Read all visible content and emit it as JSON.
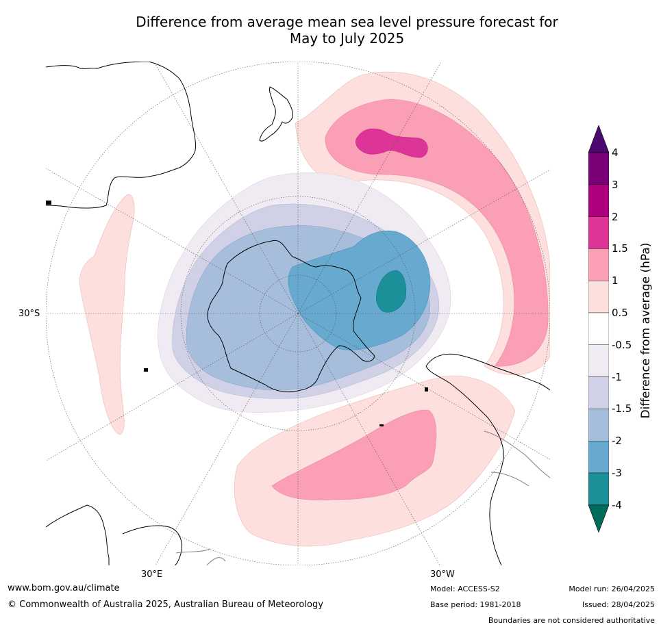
{
  "title": {
    "line1": "Difference from average mean sea level pressure forecast for",
    "line2": "May to July 2025"
  },
  "map": {
    "projection": "south-polar-stereographic",
    "lat_label": "30°S",
    "lon_labels": {
      "left": "30°E",
      "right": "30°W"
    },
    "colors": {
      "land_outline": "#000000",
      "boundaries": "#808080",
      "grid": "#555555"
    }
  },
  "colorbar": {
    "title": "Difference from average (hPa)",
    "ticks": [
      "4",
      "3",
      "2",
      "1.5",
      "1",
      "0.5",
      "-0.5",
      "-1",
      "-1.5",
      "-2",
      "-3",
      "-4"
    ],
    "levels": [
      {
        "range": "> 4",
        "color": "#4b0a6e"
      },
      {
        "range": "3 to 4",
        "color": "#7a0177"
      },
      {
        "range": "2 to 3",
        "color": "#ae017e"
      },
      {
        "range": "1.5 to 2",
        "color": "#dd3497"
      },
      {
        "range": "1 to 1.5",
        "color": "#fa9fb5"
      },
      {
        "range": "0.5 to 1",
        "color": "#fde0dd"
      },
      {
        "range": "-0.5 to 0.5",
        "color": "#ffffff"
      },
      {
        "range": "-1 to -0.5",
        "color": "#f0ebf3"
      },
      {
        "range": "-1.5 to -1",
        "color": "#d0d1e6"
      },
      {
        "range": "-2 to -1.5",
        "color": "#a6bddb"
      },
      {
        "range": "-3 to -2",
        "color": "#67a9cf"
      },
      {
        "range": "-4 to -3",
        "color": "#1c9099"
      },
      {
        "range": "< -4",
        "color": "#016c59"
      }
    ]
  },
  "footer": {
    "url": "www.bom.gov.au/climate",
    "copyright": "© Commonwealth of Australia 2025, Australian Bureau of Meteorology",
    "model": "Model: ACCESS-S2",
    "base_period": "Base period: 1981-2018",
    "model_run": "Model run: 26/04/2025",
    "issued": "Issued: 28/04/2025",
    "disclaimer": "Boundaries are not considered authoritative"
  }
}
